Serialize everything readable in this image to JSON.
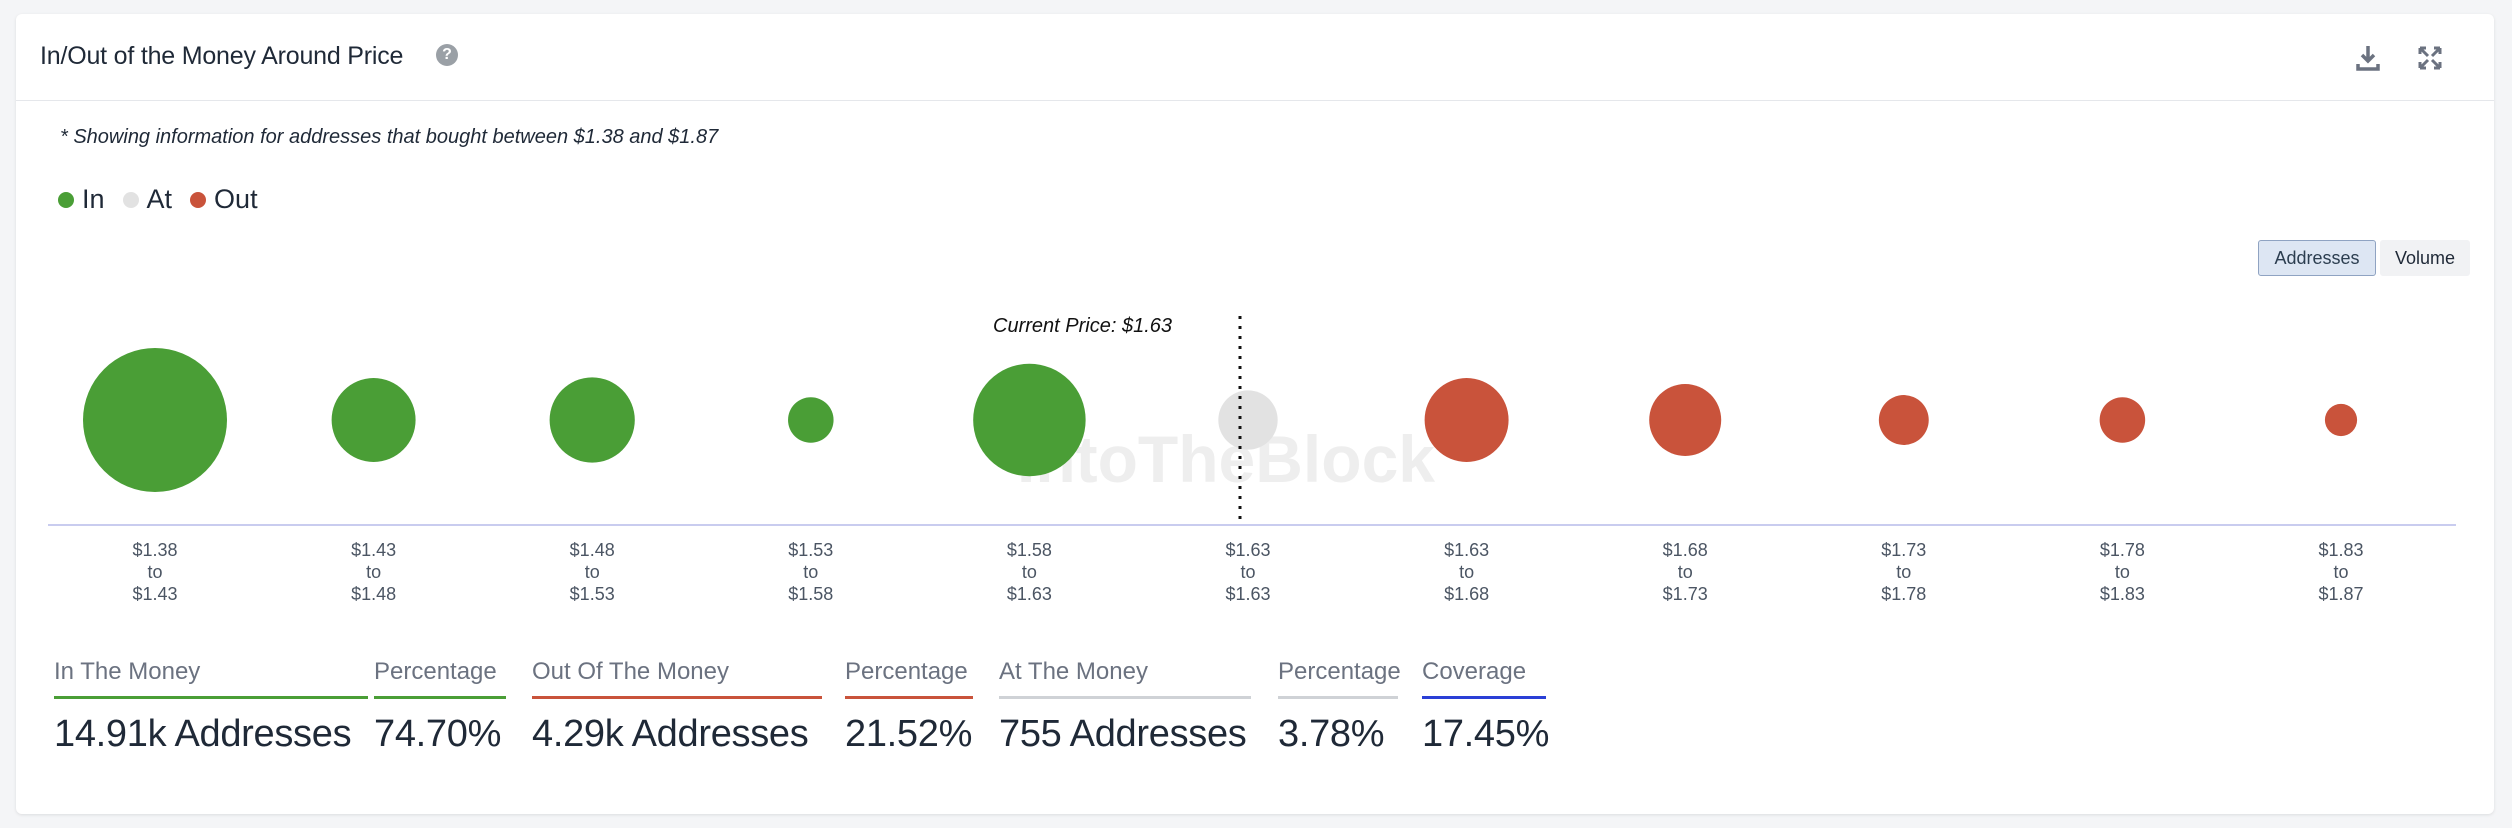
{
  "header": {
    "title": "In/Out of the Money Around Price",
    "help_icon": "help-icon",
    "download_icon": "download-icon",
    "expand_icon": "expand-icon"
  },
  "note": "* Showing information for addresses that bought between $1.38 and $1.87",
  "legend": [
    {
      "label": "In",
      "color": "#4a9e36"
    },
    {
      "label": "At",
      "color": "#e2e2e2"
    },
    {
      "label": "Out",
      "color": "#c9533b"
    }
  ],
  "toggles": {
    "addresses": "Addresses",
    "volume": "Volume",
    "active": "Addresses"
  },
  "chart_data": {
    "type": "bubble",
    "current_price_label": "Current Price: $1.63",
    "watermark": "IntoTheBlock",
    "buckets": [
      {
        "low": "$1.38",
        "high": "$1.43",
        "status": "in",
        "size": 1.0
      },
      {
        "low": "$1.43",
        "high": "$1.48",
        "status": "in",
        "size": 0.34
      },
      {
        "low": "$1.48",
        "high": "$1.53",
        "status": "in",
        "size": 0.35
      },
      {
        "low": "$1.53",
        "high": "$1.58",
        "status": "in",
        "size": 0.1
      },
      {
        "low": "$1.58",
        "high": "$1.63",
        "status": "in",
        "size": 0.61
      },
      {
        "low": "$1.63",
        "high": "$1.63",
        "status": "at",
        "size": 0.17
      },
      {
        "low": "$1.63",
        "high": "$1.68",
        "status": "out",
        "size": 0.34
      },
      {
        "low": "$1.68",
        "high": "$1.73",
        "status": "out",
        "size": 0.25
      },
      {
        "low": "$1.73",
        "high": "$1.78",
        "status": "out",
        "size": 0.12
      },
      {
        "low": "$1.78",
        "high": "$1.83",
        "status": "out",
        "size": 0.1
      },
      {
        "low": "$1.83",
        "high": "$1.87",
        "status": "out",
        "size": 0.05
      }
    ],
    "colors": {
      "in": "#4a9e36",
      "at": "#e2e2e2",
      "out": "#c9533b"
    },
    "current_price_index": 5
  },
  "stats": [
    {
      "label": "In The Money",
      "value": "14.91k Addresses",
      "color": "#4a9e36"
    },
    {
      "label": "Percentage",
      "value": "74.70%",
      "color": "#4a9e36"
    },
    {
      "label": "Out Of The Money",
      "value": "4.29k Addresses",
      "color": "#c9533b"
    },
    {
      "label": "Percentage",
      "value": "21.52%",
      "color": "#c9533b"
    },
    {
      "label": "At The Money",
      "value": "755 Addresses",
      "color": "#cfd2d6"
    },
    {
      "label": "Percentage",
      "value": "3.78%",
      "color": "#cfd2d6"
    },
    {
      "label": "Coverage",
      "value": "17.45%",
      "color": "#2a3fd6"
    }
  ]
}
